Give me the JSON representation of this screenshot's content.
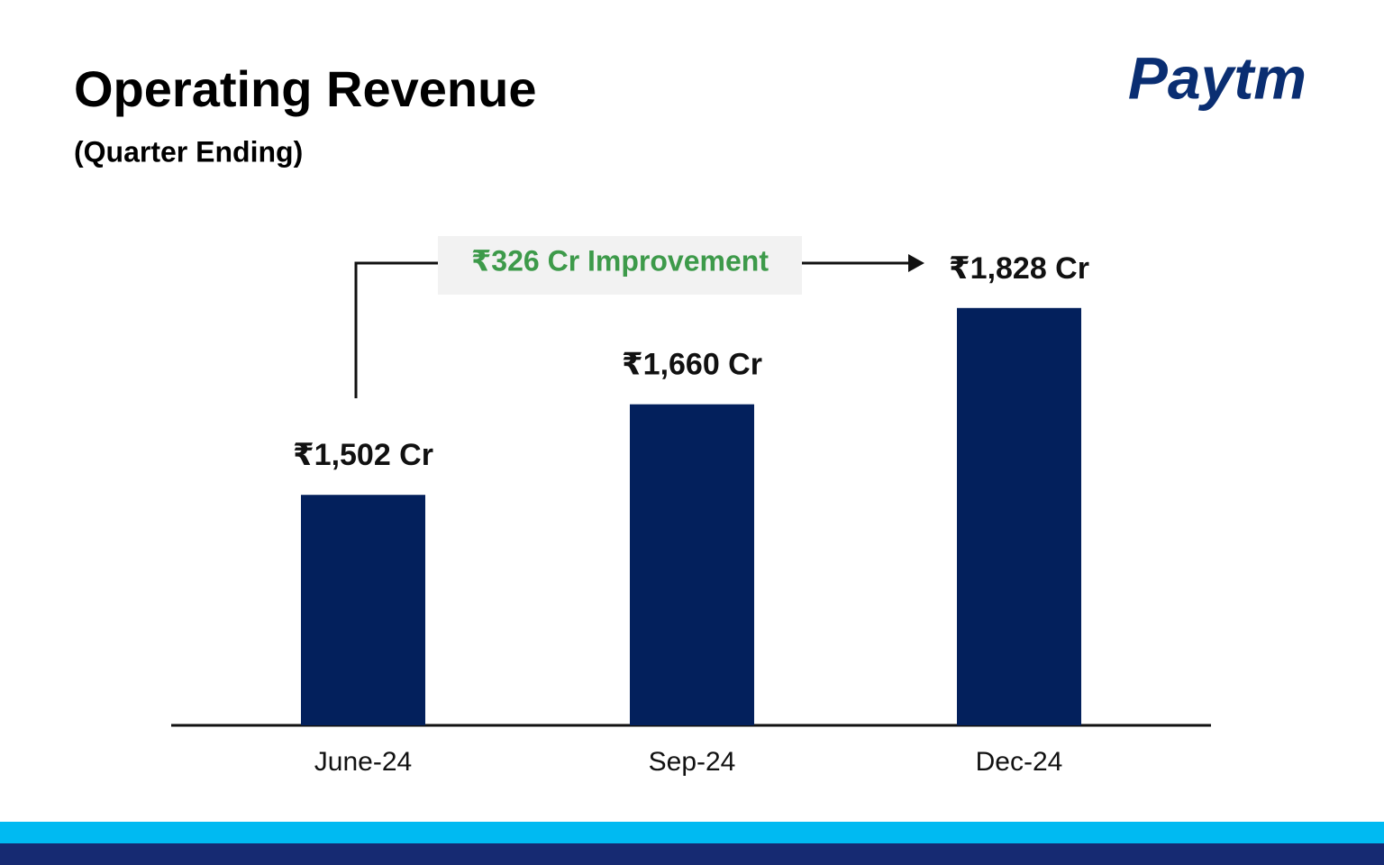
{
  "chart_data": {
    "type": "bar",
    "title": "Operating Revenue",
    "subtitle": "(Quarter Ending)",
    "logo": "Paytm",
    "categories": [
      "June-24",
      "Sep-24",
      "Dec-24"
    ],
    "values": [
      1502,
      1660,
      1828
    ],
    "value_labels": [
      "₹1,502 Cr",
      "₹1,660 Cr",
      "₹1,828 Cr"
    ],
    "color": "#03205c",
    "annotation": "₹326 Cr Improvement",
    "ylim": [
      1100,
      1900
    ]
  }
}
